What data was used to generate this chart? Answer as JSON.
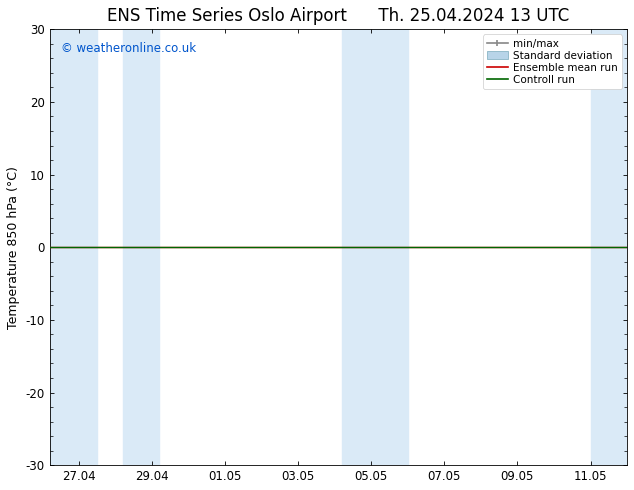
{
  "title_left": "ENS Time Series Oslo Airport",
  "title_right": "Th. 25.04.2024 13 UTC",
  "ylabel": "Temperature 850 hPa (°C)",
  "watermark": "© weatheronline.co.uk",
  "ylim": [
    -30,
    30
  ],
  "yticks": [
    -30,
    -20,
    -10,
    0,
    10,
    20,
    30
  ],
  "xtick_labels": [
    "27.04",
    "29.04",
    "01.05",
    "03.05",
    "05.05",
    "07.05",
    "09.05",
    "11.05"
  ],
  "band_color": "#daeaf7",
  "flat_line_color_green": "#006600",
  "flat_line_color_red": "#cc0000",
  "background_color": "#ffffff",
  "legend_items": [
    {
      "label": "min/max",
      "color": "#aaaaaa"
    },
    {
      "label": "Standard deviation",
      "color": "#b8d4e8"
    },
    {
      "label": "Ensemble mean run",
      "color": "#cc0000"
    },
    {
      "label": "Controll run",
      "color": "#006600"
    }
  ],
  "watermark_color": "#0055cc",
  "title_fontsize": 12,
  "label_fontsize": 9,
  "tick_fontsize": 8.5
}
